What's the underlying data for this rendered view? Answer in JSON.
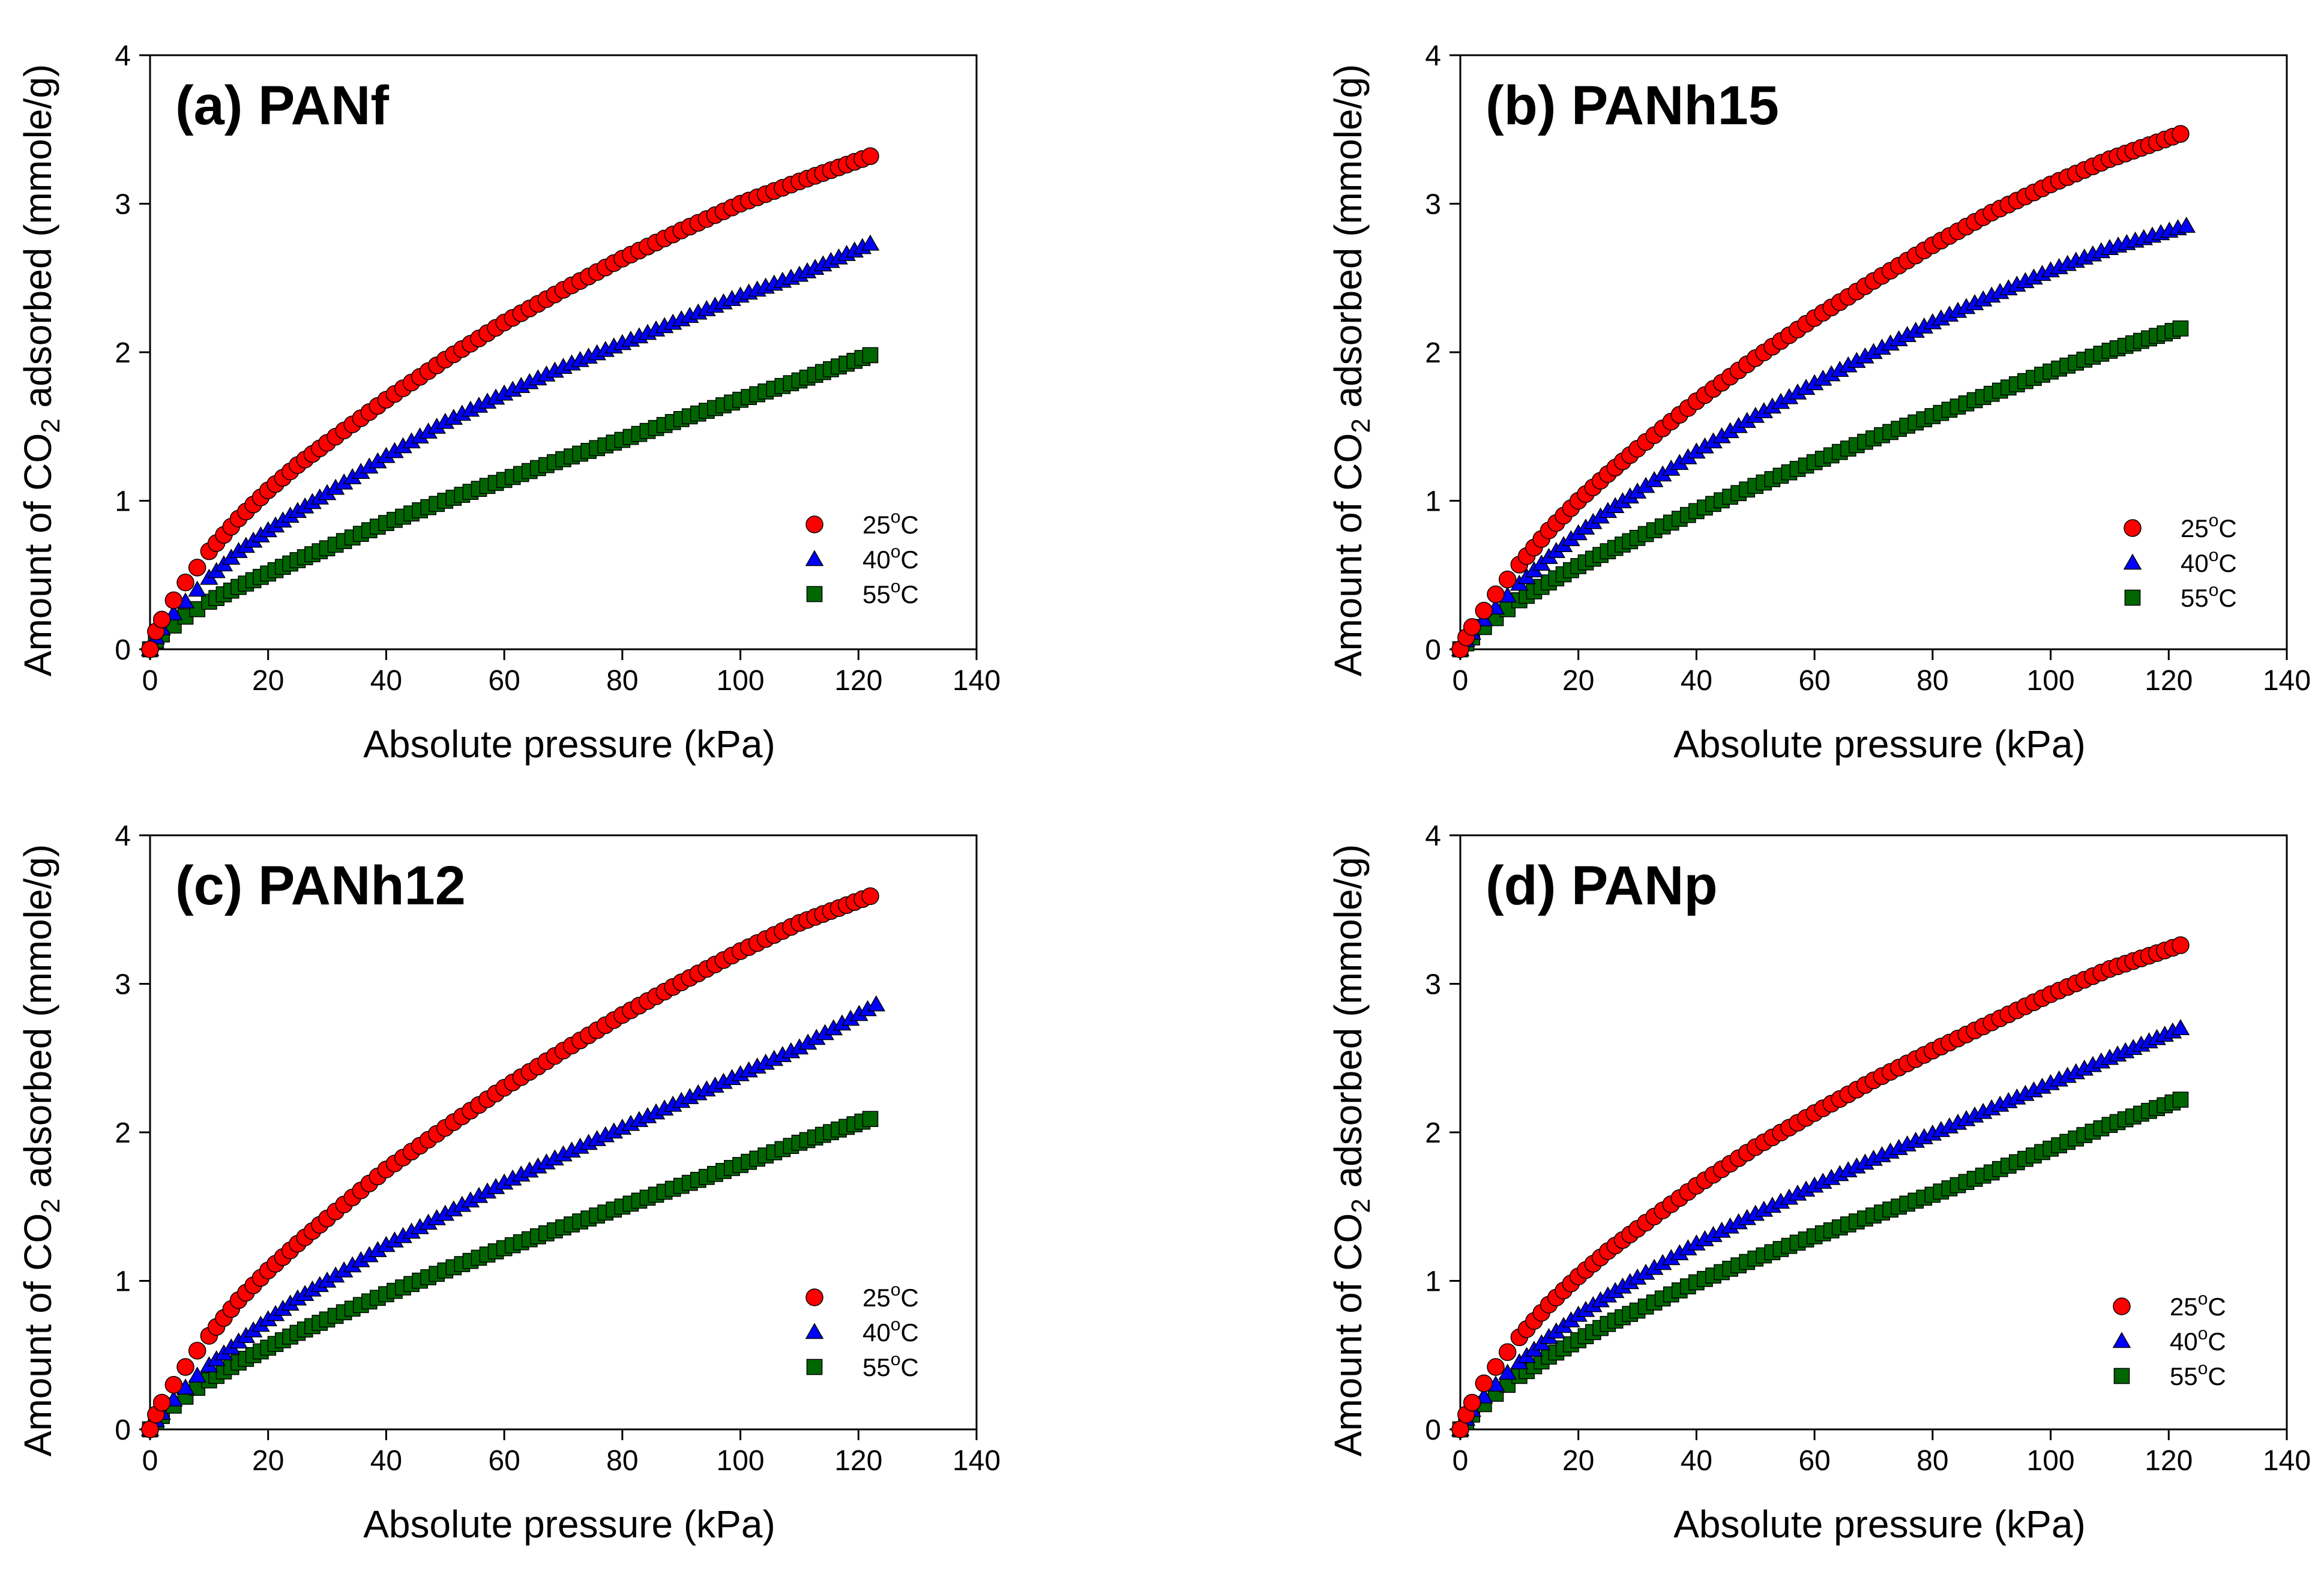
{
  "chart_data": [
    {
      "type": "scatter",
      "title": "(a) PANf",
      "xlabel": "Absolute pressure (kPa)",
      "ylabel": {
        "pre": "Amount of CO",
        "sub": "2",
        "post": " adsorbed (mmole/g)"
      },
      "xlim": [
        0,
        140
      ],
      "ylim": [
        0,
        4
      ],
      "xticks": [
        "0",
        "20",
        "40",
        "60",
        "80",
        "100",
        "120",
        "140"
      ],
      "yticks": [
        "0",
        "1",
        "2",
        "3",
        "4"
      ],
      "grid": false,
      "series": [
        {
          "name": "25oC",
          "label": {
            "pre": "25",
            "sup": "o",
            "post": "C"
          },
          "marker": "circle",
          "color": "#ff0000",
          "x": [
            0,
            1,
            2,
            4,
            6,
            8,
            10,
            15,
            20,
            25,
            30,
            40,
            50,
            60,
            70,
            80,
            90,
            100,
            110,
            122
          ],
          "y": [
            0,
            0.12,
            0.2,
            0.33,
            0.45,
            0.55,
            0.66,
            0.88,
            1.07,
            1.24,
            1.39,
            1.68,
            1.95,
            2.2,
            2.42,
            2.63,
            2.82,
            3.0,
            3.15,
            3.32
          ]
        },
        {
          "name": "40oC",
          "label": {
            "pre": "40",
            "sup": "o",
            "post": "C"
          },
          "marker": "triangle",
          "color": "#0000ff",
          "x": [
            0,
            1,
            2,
            4,
            6,
            8,
            10,
            15,
            20,
            25,
            30,
            40,
            50,
            60,
            70,
            80,
            90,
            100,
            110,
            122
          ],
          "y": [
            0,
            0.08,
            0.14,
            0.24,
            0.32,
            0.4,
            0.48,
            0.66,
            0.8,
            0.93,
            1.05,
            1.3,
            1.53,
            1.72,
            1.9,
            2.06,
            2.22,
            2.38,
            2.52,
            2.73
          ]
        },
        {
          "name": "55oC",
          "label": {
            "pre": "55",
            "sup": "o",
            "post": "C"
          },
          "marker": "square",
          "color": "#006600",
          "x": [
            0,
            1,
            2,
            4,
            6,
            8,
            10,
            15,
            20,
            25,
            30,
            40,
            50,
            60,
            70,
            80,
            90,
            100,
            110,
            122
          ],
          "y": [
            0,
            0.06,
            0.1,
            0.16,
            0.22,
            0.27,
            0.32,
            0.42,
            0.51,
            0.6,
            0.68,
            0.85,
            1.0,
            1.14,
            1.28,
            1.41,
            1.55,
            1.68,
            1.81,
            1.98
          ]
        }
      ]
    },
    {
      "type": "scatter",
      "title": "(b) PANh15",
      "xlabel": "Absolute pressure (kPa)",
      "ylabel": {
        "pre": "Amount of CO",
        "sub": "2",
        "post": " adsorbed (mmole/g)"
      },
      "xlim": [
        0,
        140
      ],
      "ylim": [
        0,
        4
      ],
      "xticks": [
        "0",
        "20",
        "40",
        "60",
        "80",
        "100",
        "120",
        "140"
      ],
      "yticks": [
        "0",
        "1",
        "2",
        "3",
        "4"
      ],
      "grid": false,
      "series": [
        {
          "name": "25oC",
          "label": {
            "pre": "25",
            "sup": "o",
            "post": "C"
          },
          "marker": "circle",
          "color": "#ff0000",
          "x": [
            0,
            1,
            2,
            4,
            6,
            8,
            10,
            15,
            20,
            25,
            30,
            40,
            50,
            60,
            70,
            80,
            90,
            100,
            110,
            122
          ],
          "y": [
            0,
            0.08,
            0.15,
            0.26,
            0.37,
            0.47,
            0.57,
            0.8,
            1.0,
            1.18,
            1.35,
            1.67,
            1.96,
            2.23,
            2.48,
            2.72,
            2.94,
            3.13,
            3.3,
            3.47
          ]
        },
        {
          "name": "40oC",
          "label": {
            "pre": "40",
            "sup": "o",
            "post": "C"
          },
          "marker": "triangle",
          "color": "#0000ff",
          "x": [
            0,
            1,
            2,
            4,
            6,
            8,
            10,
            15,
            20,
            25,
            30,
            40,
            50,
            60,
            70,
            80,
            90,
            100,
            110,
            123
          ],
          "y": [
            0,
            0.06,
            0.11,
            0.2,
            0.28,
            0.36,
            0.44,
            0.62,
            0.78,
            0.93,
            1.06,
            1.33,
            1.57,
            1.79,
            2.0,
            2.2,
            2.38,
            2.55,
            2.7,
            2.85
          ]
        },
        {
          "name": "55oC",
          "label": {
            "pre": "55",
            "sup": "o",
            "post": "C"
          },
          "marker": "square",
          "color": "#006600",
          "x": [
            0,
            1,
            2,
            4,
            6,
            8,
            10,
            15,
            20,
            25,
            30,
            40,
            50,
            60,
            70,
            80,
            90,
            100,
            110,
            122
          ],
          "y": [
            0,
            0.04,
            0.08,
            0.15,
            0.21,
            0.27,
            0.33,
            0.45,
            0.56,
            0.66,
            0.75,
            0.93,
            1.1,
            1.26,
            1.42,
            1.57,
            1.72,
            1.87,
            2.01,
            2.16
          ]
        }
      ]
    },
    {
      "type": "scatter",
      "title": "(c) PANh12",
      "xlabel": "Absolute pressure (kPa)",
      "ylabel": {
        "pre": "Amount of CO",
        "sub": "2",
        "post": " adsorbed (mmole/g)"
      },
      "xlim": [
        0,
        140
      ],
      "ylim": [
        0,
        4
      ],
      "xticks": [
        "0",
        "20",
        "40",
        "60",
        "80",
        "100",
        "120",
        "140"
      ],
      "yticks": [
        "0",
        "1",
        "2",
        "3",
        "4"
      ],
      "grid": false,
      "series": [
        {
          "name": "25oC",
          "label": {
            "pre": "25",
            "sup": "o",
            "post": "C"
          },
          "marker": "circle",
          "color": "#ff0000",
          "x": [
            0,
            1,
            2,
            4,
            6,
            8,
            10,
            15,
            20,
            25,
            30,
            40,
            50,
            60,
            70,
            80,
            90,
            100,
            110,
            122
          ],
          "y": [
            0,
            0.1,
            0.18,
            0.3,
            0.42,
            0.53,
            0.63,
            0.87,
            1.07,
            1.25,
            1.42,
            1.75,
            2.03,
            2.3,
            2.55,
            2.79,
            3.01,
            3.22,
            3.41,
            3.59
          ]
        },
        {
          "name": "40oC",
          "label": {
            "pre": "40",
            "sup": "o",
            "post": "C"
          },
          "marker": "triangle",
          "color": "#0000ff",
          "x": [
            0,
            1,
            2,
            4,
            6,
            8,
            10,
            15,
            20,
            25,
            30,
            40,
            50,
            60,
            70,
            80,
            90,
            100,
            110,
            123
          ],
          "y": [
            0,
            0.06,
            0.11,
            0.2,
            0.28,
            0.36,
            0.43,
            0.59,
            0.74,
            0.88,
            1.0,
            1.24,
            1.45,
            1.66,
            1.85,
            2.03,
            2.21,
            2.39,
            2.57,
            2.86
          ]
        },
        {
          "name": "55oC",
          "label": {
            "pre": "55",
            "sup": "o",
            "post": "C"
          },
          "marker": "square",
          "color": "#006600",
          "x": [
            0,
            1,
            2,
            4,
            6,
            8,
            10,
            15,
            20,
            25,
            30,
            40,
            50,
            60,
            70,
            80,
            90,
            100,
            110,
            122
          ],
          "y": [
            0,
            0.05,
            0.09,
            0.16,
            0.22,
            0.28,
            0.33,
            0.45,
            0.55,
            0.65,
            0.74,
            0.91,
            1.07,
            1.22,
            1.36,
            1.5,
            1.64,
            1.78,
            1.93,
            2.09
          ]
        }
      ]
    },
    {
      "type": "scatter",
      "title": "(d) PANp",
      "xlabel": "Absolute pressure (kPa)",
      "ylabel": {
        "pre": "Amount of CO",
        "sub": "2",
        "post": " adsorbed (mmole/g)"
      },
      "xlim": [
        0,
        140
      ],
      "ylim": [
        0,
        4
      ],
      "xticks": [
        "0",
        "20",
        "40",
        "60",
        "80",
        "100",
        "120",
        "140"
      ],
      "yticks": [
        "0",
        "1",
        "2",
        "3",
        "4"
      ],
      "grid": false,
      "series": [
        {
          "name": "25oC",
          "label": {
            "pre": "25",
            "sup": "o",
            "post": "C"
          },
          "marker": "circle",
          "color": "#ff0000",
          "x": [
            0,
            1,
            2,
            4,
            6,
            8,
            10,
            15,
            20,
            25,
            30,
            40,
            50,
            60,
            70,
            80,
            90,
            100,
            110,
            122
          ],
          "y": [
            0,
            0.1,
            0.18,
            0.31,
            0.42,
            0.52,
            0.62,
            0.84,
            1.03,
            1.2,
            1.35,
            1.64,
            1.9,
            2.13,
            2.35,
            2.55,
            2.74,
            2.93,
            3.1,
            3.26
          ]
        },
        {
          "name": "40oC",
          "label": {
            "pre": "40",
            "sup": "o",
            "post": "C"
          },
          "marker": "triangle",
          "color": "#0000ff",
          "x": [
            0,
            1,
            2,
            4,
            6,
            8,
            10,
            15,
            20,
            25,
            30,
            40,
            50,
            60,
            70,
            80,
            90,
            100,
            110,
            122
          ],
          "y": [
            0,
            0.07,
            0.13,
            0.22,
            0.3,
            0.38,
            0.45,
            0.62,
            0.77,
            0.9,
            1.02,
            1.25,
            1.45,
            1.64,
            1.82,
            1.99,
            2.16,
            2.33,
            2.5,
            2.7
          ]
        },
        {
          "name": "55oC",
          "label": {
            "pre": "55",
            "sup": "o",
            "post": "C"
          },
          "marker": "square",
          "color": "#006600",
          "x": [
            0,
            1,
            2,
            4,
            6,
            8,
            10,
            15,
            20,
            25,
            30,
            40,
            50,
            60,
            70,
            80,
            90,
            100,
            110,
            122
          ],
          "y": [
            0,
            0.05,
            0.1,
            0.17,
            0.24,
            0.3,
            0.36,
            0.49,
            0.6,
            0.71,
            0.8,
            0.99,
            1.15,
            1.3,
            1.44,
            1.58,
            1.73,
            1.89,
            2.05,
            2.22
          ]
        }
      ]
    }
  ]
}
